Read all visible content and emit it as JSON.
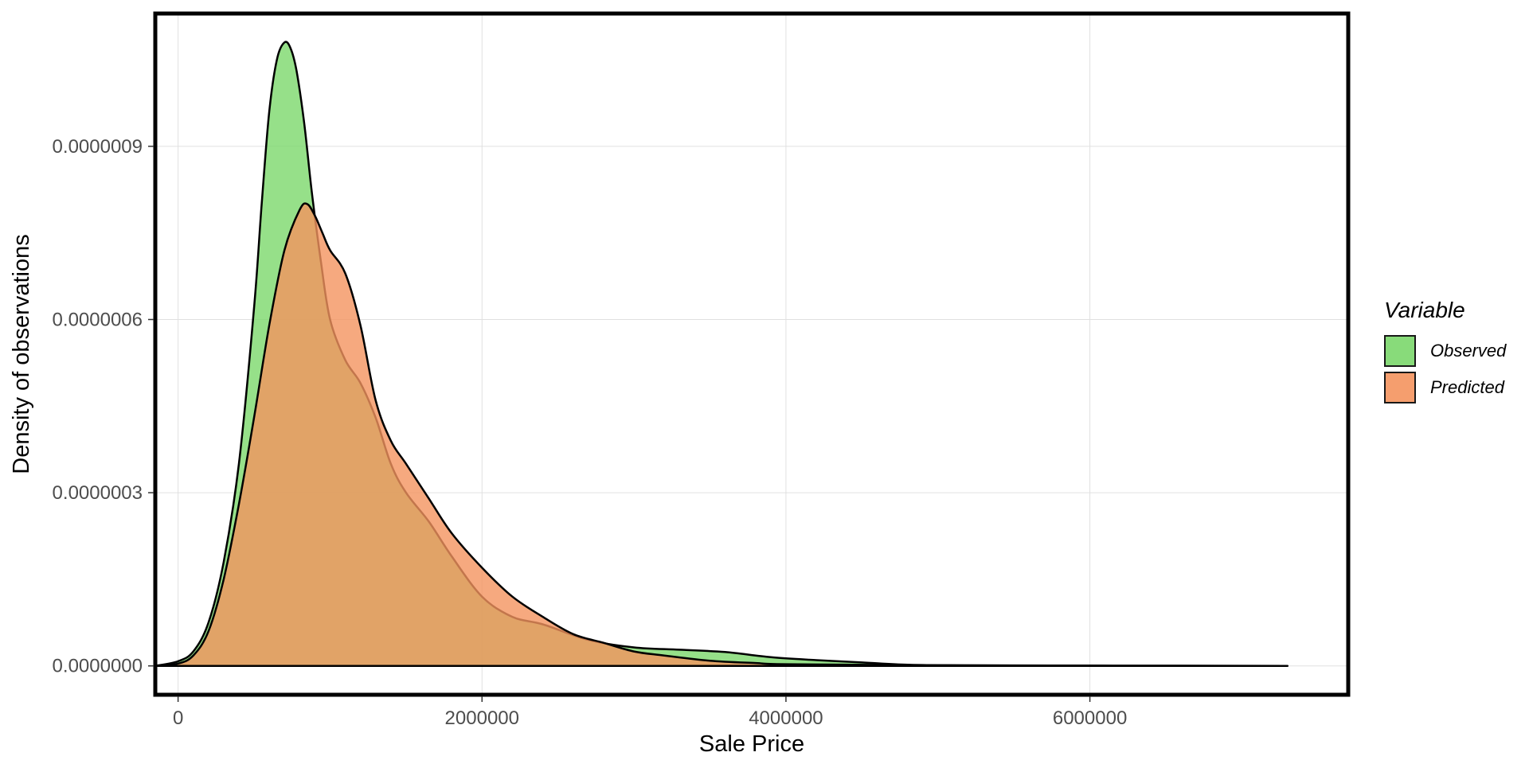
{
  "chart_data": {
    "type": "area",
    "xlabel": "Sale Price",
    "ylabel": "Density of observations",
    "xlim": [
      -150000,
      7700000
    ],
    "ylim": [
      -5e-08,
      1.13e-06
    ],
    "x_ticks": [
      0,
      2000000,
      4000000,
      6000000
    ],
    "x_tick_labels": [
      "0",
      "2000000",
      "4000000",
      "6000000"
    ],
    "y_ticks": [
      0,
      3e-07,
      6e-07,
      9e-07
    ],
    "y_tick_labels": [
      "0.0000000",
      "0.0000003",
      "0.0000006",
      "0.0000009"
    ],
    "grid": true,
    "legend_title": "Variable",
    "legend_position": "right",
    "series": [
      {
        "name": "Observed",
        "color": "#7cd86c",
        "x": [
          -150000,
          0,
          100000,
          200000,
          300000,
          400000,
          500000,
          550000,
          600000,
          650000,
          700000,
          740000,
          780000,
          830000,
          880000,
          940000,
          1000000,
          1100000,
          1200000,
          1300000,
          1400000,
          1500000,
          1650000,
          1800000,
          2000000,
          2200000,
          2400000,
          2700000,
          3000000,
          3300000,
          3600000,
          3900000,
          4200000,
          4500000,
          4800000,
          5200000,
          6000000,
          7300000
        ],
        "values": [
          0,
          8e-09,
          2.5e-08,
          7.5e-08,
          1.8e-07,
          3.5e-07,
          6.2e-07,
          8e-07,
          9.6e-07,
          1.05e-06,
          1.08e-06,
          1.07e-06,
          1.03e-06,
          9.4e-07,
          8.2e-07,
          7e-07,
          6e-07,
          5.3e-07,
          4.9e-07,
          4.3e-07,
          3.5e-07,
          3e-07,
          2.5e-07,
          1.9e-07,
          1.2e-07,
          8.5e-08,
          7.2e-08,
          4.5e-08,
          3.2e-08,
          2.8e-08,
          2.4e-08,
          1.5e-08,
          1e-08,
          6e-09,
          2e-09,
          1e-09,
          5e-10,
          0
        ]
      },
      {
        "name": "Predicted",
        "color": "#f4945f",
        "x": [
          -150000,
          0,
          100000,
          200000,
          300000,
          400000,
          500000,
          600000,
          700000,
          800000,
          850000,
          900000,
          950000,
          1000000,
          1100000,
          1200000,
          1300000,
          1400000,
          1500000,
          1650000,
          1800000,
          2000000,
          2200000,
          2400000,
          2600000,
          2800000,
          3000000,
          3200000,
          3500000,
          3800000,
          4000000,
          5000000,
          7300000
        ],
        "values": [
          0,
          4e-09,
          1.8e-08,
          6e-08,
          1.5e-07,
          2.8e-07,
          4.3e-07,
          5.9e-07,
          7.2e-07,
          7.9e-07,
          8e-07,
          7.8e-07,
          7.5e-07,
          7.2e-07,
          6.8e-07,
          5.9e-07,
          4.6e-07,
          3.9e-07,
          3.5e-07,
          2.9e-07,
          2.3e-07,
          1.7e-07,
          1.2e-07,
          8.5e-08,
          5.5e-08,
          4e-08,
          2.5e-08,
          1.8e-08,
          9e-09,
          5e-09,
          3e-09,
          1e-09,
          0
        ]
      }
    ]
  }
}
